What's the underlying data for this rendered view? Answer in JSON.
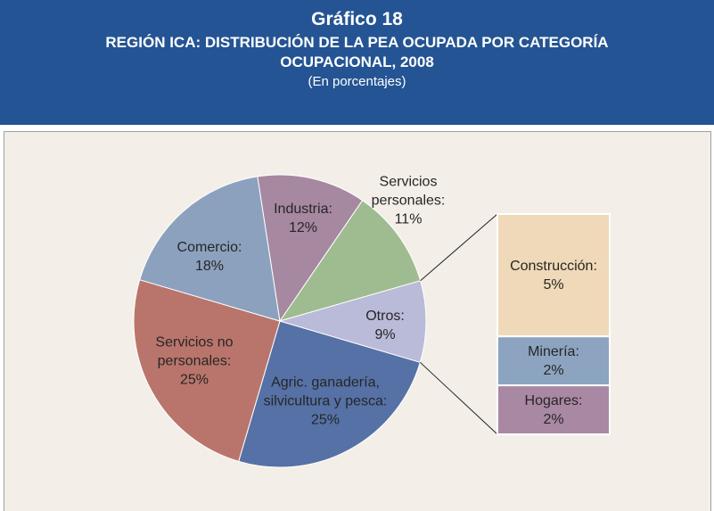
{
  "header": {
    "title": "Gráfico 18",
    "subtitle": "REGIÓN ICA: DISTRIBUCIÓN DE LA PEA OCUPADA POR CATEGORÍA OCUPACIONAL, 2008",
    "note": "(En porcentajes)"
  },
  "chart_data": {
    "type": "pie-of-bar",
    "categories": [
      "Agric. ganadería, silvicultura y pesca:",
      "Servicios no personales:",
      "Comercio:",
      "Industria:",
      "Servicios personales:",
      "Otros:"
    ],
    "values": [
      25,
      25,
      18,
      12,
      11,
      9
    ],
    "value_labels": [
      "25%",
      "25%",
      "18%",
      "12%",
      "11%",
      "9%"
    ],
    "colors": [
      "#5571a6",
      "#b9756c",
      "#8ba1be",
      "#a688a1",
      "#9fbc90",
      "#babad9"
    ],
    "bar": {
      "categories": [
        "Construcción:",
        "Minería:",
        "Hogares:"
      ],
      "values": [
        5,
        2,
        2
      ],
      "value_labels": [
        "5%",
        "2%",
        "2%"
      ],
      "colors": [
        "#f0d9b8",
        "#8ca4c0",
        "#a988a4"
      ]
    }
  }
}
